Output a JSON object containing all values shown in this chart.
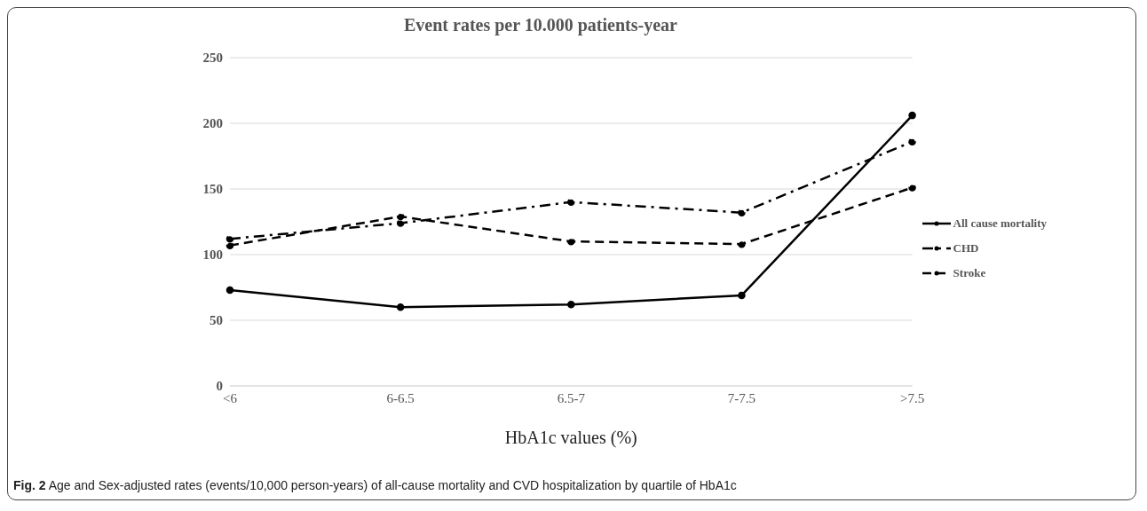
{
  "chart_data": {
    "type": "line",
    "title": "Event rates per 10.000 patients-year",
    "xlabel": "HbA1c values (%)",
    "categories": [
      "<6",
      "6-6.5",
      "6.5-7",
      "7-7.5",
      ">7.5"
    ],
    "series": [
      {
        "name": "All cause mortality",
        "color": "#000000",
        "line_style": "solid",
        "values": [
          73,
          60,
          62,
          69,
          206
        ]
      },
      {
        "name": "CHD",
        "color": "#000000",
        "line_style": "dashdot",
        "values": [
          112,
          124,
          140,
          132,
          186
        ]
      },
      {
        "name": "Stroke",
        "color": "#000000",
        "line_style": "dashed",
        "values": [
          107,
          129,
          110,
          108,
          151
        ]
      }
    ],
    "ylim": [
      0,
      250
    ],
    "yticks": [
      0,
      50,
      100,
      150,
      200,
      250
    ],
    "grid": "y",
    "legend": "right",
    "marker": "circle",
    "annotations": [
      "Fig. 2 Age and Sex-adjusted rates (events/10,000 person-years) of all-cause mortality and CVD hospitalization by quartile of HbA1c"
    ]
  }
}
